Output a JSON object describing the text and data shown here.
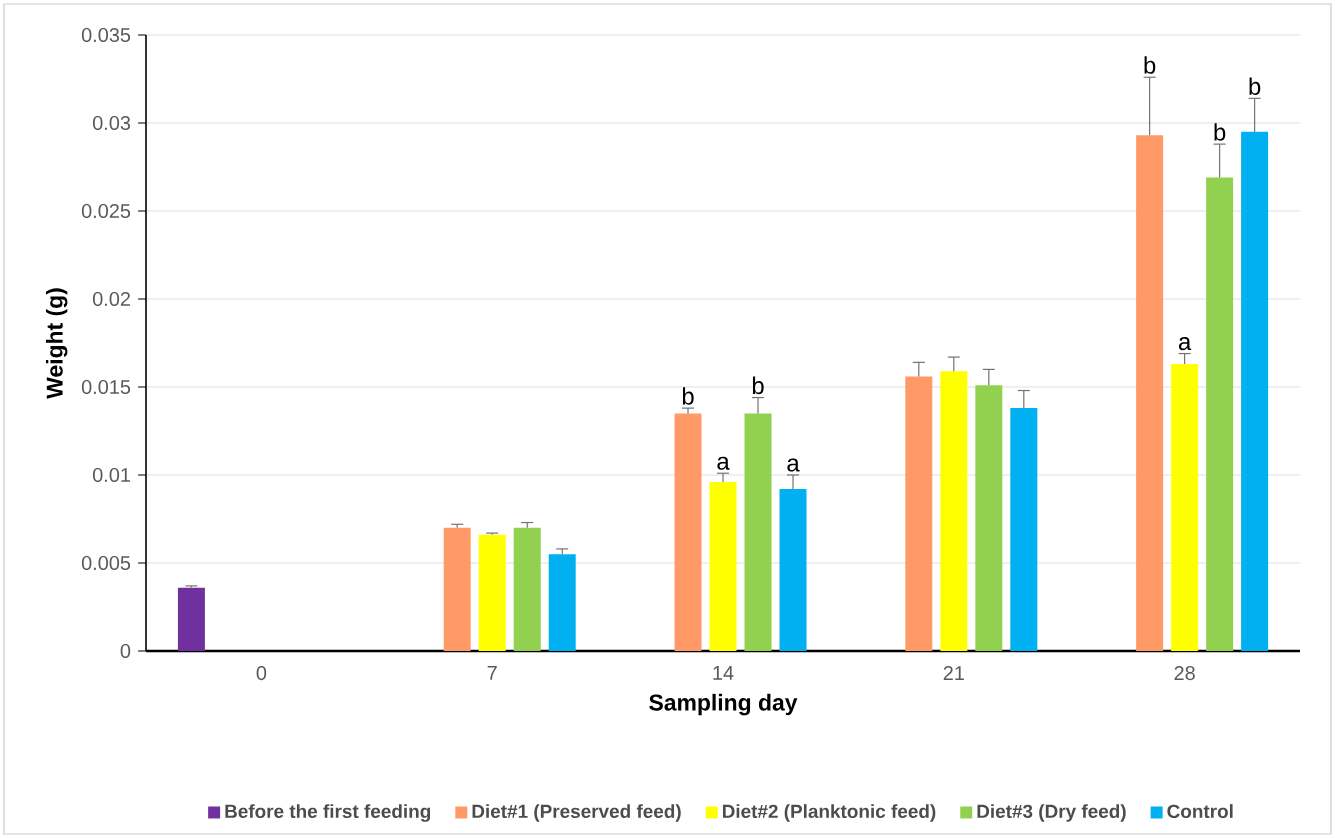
{
  "chart_data": {
    "type": "bar",
    "xlabel": "Sampling day",
    "ylabel": "Weight (g)",
    "categories": [
      "0",
      "7",
      "14",
      "21",
      "28"
    ],
    "series": [
      {
        "name": "Before the first feeding",
        "color": "#7030a0",
        "values": [
          0.0036,
          null,
          null,
          null,
          null
        ],
        "errors": [
          0.0001,
          null,
          null,
          null,
          null
        ]
      },
      {
        "name": "Diet#1 (Preserved feed)",
        "color": "#ff9966",
        "values": [
          null,
          0.007,
          0.0135,
          0.0156,
          0.0293
        ],
        "errors": [
          null,
          0.0002,
          0.0003,
          0.0008,
          0.0033
        ],
        "value_labels": [
          null,
          null,
          "b",
          null,
          "b"
        ]
      },
      {
        "name": "Diet#2 (Planktonic feed)",
        "color": "#ffff00",
        "values": [
          null,
          0.0066,
          0.0096,
          0.0159,
          0.0163
        ],
        "errors": [
          null,
          0.0001,
          0.0005,
          0.0008,
          0.0006
        ],
        "value_labels": [
          null,
          null,
          "a",
          null,
          "a"
        ]
      },
      {
        "name": "Diet#3 (Dry feed)",
        "color": "#92d050",
        "values": [
          null,
          0.007,
          0.0135,
          0.0151,
          0.0269
        ],
        "errors": [
          null,
          0.0003,
          0.0009,
          0.0009,
          0.0019
        ],
        "value_labels": [
          null,
          null,
          "b",
          null,
          "b"
        ]
      },
      {
        "name": "Control",
        "color": "#00b0f0",
        "values": [
          null,
          0.0055,
          0.0092,
          0.0138,
          0.0295
        ],
        "errors": [
          null,
          0.0003,
          0.0008,
          0.001,
          0.0019
        ],
        "value_labels": [
          null,
          null,
          "a",
          null,
          "b"
        ]
      }
    ],
    "ylim": [
      0,
      0.035
    ],
    "yticks": [
      0,
      0.005,
      0.01,
      0.015,
      0.02,
      0.025,
      0.03,
      0.035
    ],
    "grid": "y",
    "legend": "bottom"
  }
}
